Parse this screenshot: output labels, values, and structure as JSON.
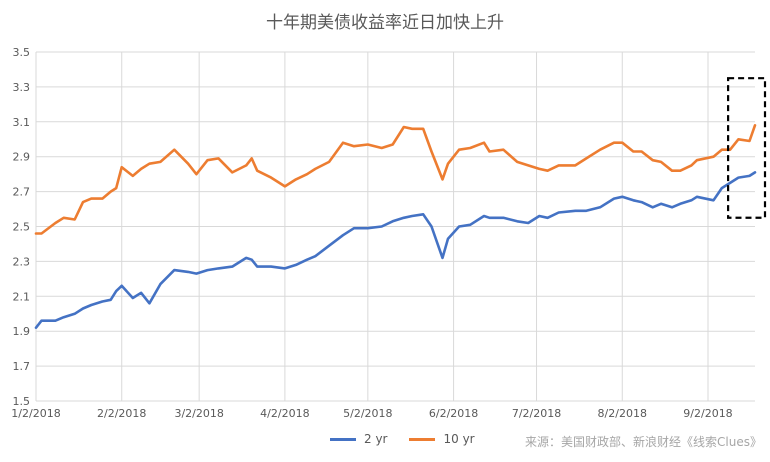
{
  "title": "十年期美债收益率近日加快上升",
  "source": "来源：美国财政部、新浪财经《线索Clues》",
  "colors": {
    "series_2yr": "#4472c4",
    "series_10yr": "#ed7d31",
    "grid": "#d9d9d9",
    "axis": "#595959",
    "highlight": "#000000"
  },
  "chart_data": {
    "type": "line",
    "title": "十年期美债收益率近日加快上升",
    "xlabel": "",
    "ylabel": "",
    "ylim": [
      1.5,
      3.5
    ],
    "yticks": [
      1.5,
      1.7,
      1.9,
      2.1,
      2.3,
      2.5,
      2.7,
      2.9,
      3.1,
      3.3,
      3.5
    ],
    "xticks": [
      "1/2/2018",
      "2/2/2018",
      "3/2/2018",
      "4/2/2018",
      "5/2/2018",
      "6/2/2018",
      "7/2/2018",
      "8/2/2018",
      "9/2/2018"
    ],
    "x_start": "1/2/2018",
    "x_end": "9/19/2018",
    "grid": true,
    "legend_position": "bottom",
    "series": [
      {
        "name": "2 yr",
        "color": "#4472c4",
        "points": [
          [
            "1/2/2018",
            1.92
          ],
          [
            "1/4/2018",
            1.96
          ],
          [
            "1/9/2018",
            1.96
          ],
          [
            "1/12/2018",
            1.98
          ],
          [
            "1/16/2018",
            2.0
          ],
          [
            "1/19/2018",
            2.03
          ],
          [
            "1/22/2018",
            2.05
          ],
          [
            "1/26/2018",
            2.07
          ],
          [
            "1/29/2018",
            2.08
          ],
          [
            "1/31/2018",
            2.13
          ],
          [
            "2/2/2018",
            2.16
          ],
          [
            "2/6/2018",
            2.09
          ],
          [
            "2/9/2018",
            2.12
          ],
          [
            "2/12/2018",
            2.06
          ],
          [
            "2/16/2018",
            2.17
          ],
          [
            "2/21/2018",
            2.25
          ],
          [
            "2/26/2018",
            2.24
          ],
          [
            "3/1/2018",
            2.23
          ],
          [
            "3/5/2018",
            2.25
          ],
          [
            "3/9/2018",
            2.26
          ],
          [
            "3/14/2018",
            2.27
          ],
          [
            "3/19/2018",
            2.32
          ],
          [
            "3/21/2018",
            2.31
          ],
          [
            "3/23/2018",
            2.27
          ],
          [
            "3/28/2018",
            2.27
          ],
          [
            "4/2/2018",
            2.26
          ],
          [
            "4/6/2018",
            2.28
          ],
          [
            "4/10/2018",
            2.31
          ],
          [
            "4/13/2018",
            2.33
          ],
          [
            "4/18/2018",
            2.39
          ],
          [
            "4/23/2018",
            2.45
          ],
          [
            "4/27/2018",
            2.49
          ],
          [
            "5/2/2018",
            2.49
          ],
          [
            "5/7/2018",
            2.5
          ],
          [
            "5/11/2018",
            2.53
          ],
          [
            "5/15/2018",
            2.55
          ],
          [
            "5/18/2018",
            2.56
          ],
          [
            "5/22/2018",
            2.57
          ],
          [
            "5/25/2018",
            2.5
          ],
          [
            "5/29/2018",
            2.32
          ],
          [
            "5/31/2018",
            2.43
          ],
          [
            "6/4/2018",
            2.5
          ],
          [
            "6/8/2018",
            2.51
          ],
          [
            "6/13/2018",
            2.56
          ],
          [
            "6/15/2018",
            2.55
          ],
          [
            "6/20/2018",
            2.55
          ],
          [
            "6/25/2018",
            2.53
          ],
          [
            "6/29/2018",
            2.52
          ],
          [
            "7/3/2018",
            2.56
          ],
          [
            "7/6/2018",
            2.55
          ],
          [
            "7/10/2018",
            2.58
          ],
          [
            "7/16/2018",
            2.59
          ],
          [
            "7/20/2018",
            2.59
          ],
          [
            "7/25/2018",
            2.61
          ],
          [
            "7/30/2018",
            2.66
          ],
          [
            "8/2/2018",
            2.67
          ],
          [
            "8/6/2018",
            2.65
          ],
          [
            "8/9/2018",
            2.64
          ],
          [
            "8/13/2018",
            2.61
          ],
          [
            "8/16/2018",
            2.63
          ],
          [
            "8/20/2018",
            2.61
          ],
          [
            "8/23/2018",
            2.63
          ],
          [
            "8/27/2018",
            2.65
          ],
          [
            "8/29/2018",
            2.67
          ],
          [
            "9/4/2018",
            2.65
          ],
          [
            "9/7/2018",
            2.72
          ],
          [
            "9/10/2018",
            2.75
          ],
          [
            "9/13/2018",
            2.78
          ],
          [
            "9/17/2018",
            2.79
          ],
          [
            "9/19/2018",
            2.81
          ]
        ]
      },
      {
        "name": "10 yr",
        "color": "#ed7d31",
        "points": [
          [
            "1/2/2018",
            2.46
          ],
          [
            "1/4/2018",
            2.46
          ],
          [
            "1/9/2018",
            2.52
          ],
          [
            "1/12/2018",
            2.55
          ],
          [
            "1/16/2018",
            2.54
          ],
          [
            "1/19/2018",
            2.64
          ],
          [
            "1/22/2018",
            2.66
          ],
          [
            "1/26/2018",
            2.66
          ],
          [
            "1/29/2018",
            2.7
          ],
          [
            "1/31/2018",
            2.72
          ],
          [
            "2/2/2018",
            2.84
          ],
          [
            "2/6/2018",
            2.79
          ],
          [
            "2/9/2018",
            2.83
          ],
          [
            "2/12/2018",
            2.86
          ],
          [
            "2/16/2018",
            2.87
          ],
          [
            "2/21/2018",
            2.94
          ],
          [
            "2/26/2018",
            2.86
          ],
          [
            "3/1/2018",
            2.8
          ],
          [
            "3/5/2018",
            2.88
          ],
          [
            "3/9/2018",
            2.89
          ],
          [
            "3/14/2018",
            2.81
          ],
          [
            "3/19/2018",
            2.85
          ],
          [
            "3/21/2018",
            2.89
          ],
          [
            "3/23/2018",
            2.82
          ],
          [
            "3/28/2018",
            2.78
          ],
          [
            "4/2/2018",
            2.73
          ],
          [
            "4/6/2018",
            2.77
          ],
          [
            "4/10/2018",
            2.8
          ],
          [
            "4/13/2018",
            2.83
          ],
          [
            "4/18/2018",
            2.87
          ],
          [
            "4/23/2018",
            2.98
          ],
          [
            "4/27/2018",
            2.96
          ],
          [
            "5/2/2018",
            2.97
          ],
          [
            "5/7/2018",
            2.95
          ],
          [
            "5/11/2018",
            2.97
          ],
          [
            "5/15/2018",
            3.07
          ],
          [
            "5/18/2018",
            3.06
          ],
          [
            "5/22/2018",
            3.06
          ],
          [
            "5/25/2018",
            2.93
          ],
          [
            "5/29/2018",
            2.77
          ],
          [
            "5/31/2018",
            2.86
          ],
          [
            "6/4/2018",
            2.94
          ],
          [
            "6/8/2018",
            2.95
          ],
          [
            "6/13/2018",
            2.98
          ],
          [
            "6/15/2018",
            2.93
          ],
          [
            "6/20/2018",
            2.94
          ],
          [
            "6/25/2018",
            2.87
          ],
          [
            "6/29/2018",
            2.85
          ],
          [
            "7/3/2018",
            2.83
          ],
          [
            "7/6/2018",
            2.82
          ],
          [
            "7/10/2018",
            2.85
          ],
          [
            "7/16/2018",
            2.85
          ],
          [
            "7/20/2018",
            2.89
          ],
          [
            "7/25/2018",
            2.94
          ],
          [
            "7/30/2018",
            2.98
          ],
          [
            "8/2/2018",
            2.98
          ],
          [
            "8/6/2018",
            2.93
          ],
          [
            "8/9/2018",
            2.93
          ],
          [
            "8/13/2018",
            2.88
          ],
          [
            "8/16/2018",
            2.87
          ],
          [
            "8/20/2018",
            2.82
          ],
          [
            "8/23/2018",
            2.82
          ],
          [
            "8/27/2018",
            2.85
          ],
          [
            "8/29/2018",
            2.88
          ],
          [
            "9/4/2018",
            2.9
          ],
          [
            "9/7/2018",
            2.94
          ],
          [
            "9/10/2018",
            2.94
          ],
          [
            "9/13/2018",
            3.0
          ],
          [
            "9/17/2018",
            2.99
          ],
          [
            "9/19/2018",
            3.08
          ]
        ]
      }
    ],
    "annotation": "dashed-box"
  }
}
